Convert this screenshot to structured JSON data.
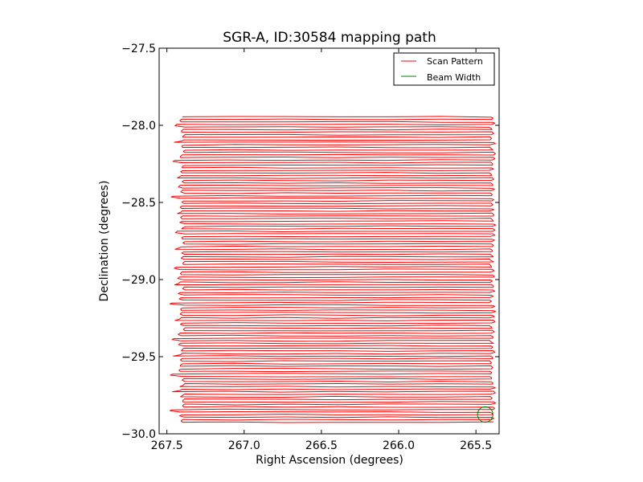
{
  "chart_data": {
    "type": "line",
    "title": "SGR-A, ID:30584 mapping path",
    "xlabel": "Right Ascension (degrees)",
    "ylabel": "Declination (degrees)",
    "xlim": [
      267.55,
      265.35
    ],
    "ylim": [
      -30.0,
      -27.5
    ],
    "x_inverted": true,
    "xticks": [
      267.5,
      267.0,
      266.5,
      266.0,
      265.5
    ],
    "xtick_labels": [
      "267.5",
      "267.0",
      "266.5",
      "266.0",
      "265.5"
    ],
    "yticks": [
      -30.0,
      -29.5,
      -29.0,
      -28.5,
      -28.0,
      -27.5
    ],
    "ytick_labels": [
      "−30.0",
      "−29.5",
      "−29.0",
      "−28.5",
      "−28.0",
      "−27.5"
    ],
    "grid": false,
    "legend_position": "top-right",
    "series": [
      {
        "name": "Scan Pattern",
        "color": "#ff0000",
        "style": "raster",
        "ra_min": 267.4,
        "ra_max": 265.4,
        "dec_start": -27.945,
        "dec_end": -29.925,
        "row_spacing": 0.0165
      },
      {
        "name": "Beam Width",
        "color": "#008000",
        "style": "circle",
        "center": [
          265.44,
          -29.875
        ],
        "radius_deg": 0.05
      }
    ]
  }
}
